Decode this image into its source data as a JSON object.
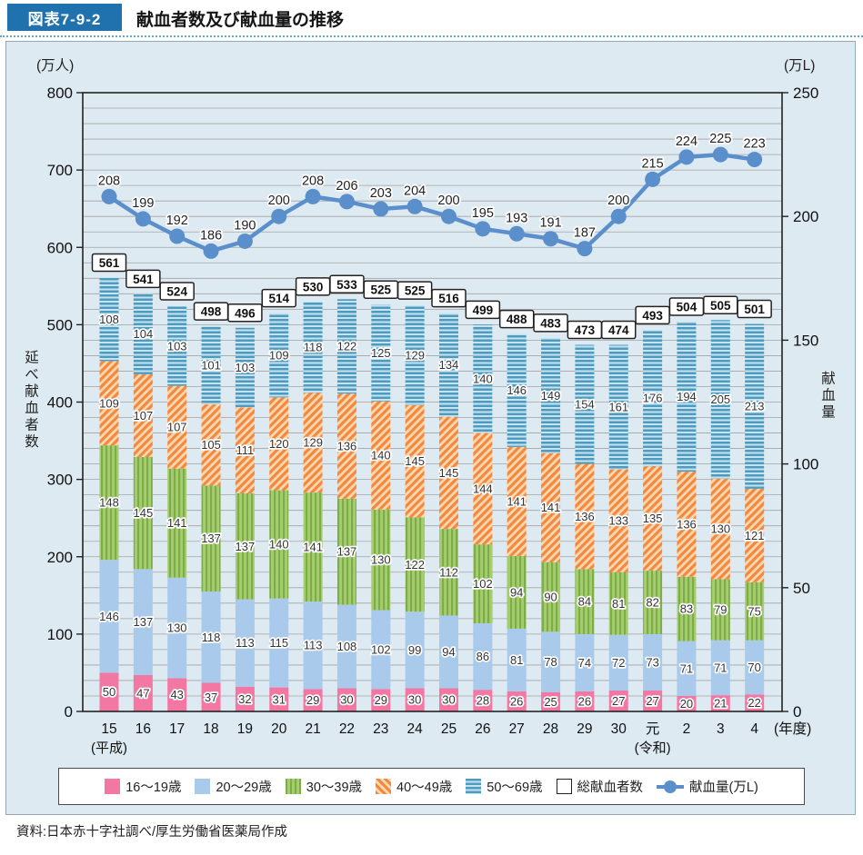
{
  "header": {
    "figure_label": "図表7-9-2",
    "title": "献血者数及び献血量の推移"
  },
  "source": "資料:日本赤十字社調べ/厚生労働省医薬局作成",
  "colors": {
    "panel_bg": "#DEEAF2",
    "header_blue": "#1F72AD",
    "line_blue": "#5B8FCB",
    "grid_gray": "#A3A3A3",
    "axis_black": "#222222"
  },
  "chart_data": {
    "type": "bar",
    "subtype": "stacked-bars-with-line",
    "left_axis": {
      "unit": "(万人)",
      "title": "延べ献血者数",
      "min": 0,
      "max": 800,
      "tick_step": 100,
      "grid_step": 20
    },
    "right_axis": {
      "unit": "(万L)",
      "title": "献血量",
      "min": 0,
      "max": 250,
      "tick_step": 50
    },
    "x_axis": {
      "categories": [
        "15",
        "16",
        "17",
        "18",
        "19",
        "20",
        "21",
        "22",
        "23",
        "24",
        "25",
        "26",
        "27",
        "28",
        "29",
        "30",
        "元",
        "2",
        "3",
        "4"
      ],
      "era_labels": [
        {
          "index": 0,
          "label": "(平成)"
        },
        {
          "index": 16,
          "label": "(令和)"
        }
      ],
      "suffix": "(年度)"
    },
    "series": [
      {
        "name": "16〜19歳",
        "style": {
          "type": "solid",
          "c1": "#F377A3"
        },
        "values": [
          50,
          47,
          43,
          37,
          32,
          31,
          29,
          30,
          29,
          30,
          30,
          28,
          26,
          25,
          26,
          27,
          27,
          20,
          21,
          22
        ]
      },
      {
        "name": "20〜29歳",
        "style": {
          "type": "solid",
          "c1": "#A9CAEB"
        },
        "values": [
          146,
          137,
          130,
          118,
          113,
          115,
          113,
          108,
          102,
          99,
          94,
          86,
          81,
          78,
          74,
          72,
          73,
          71,
          71,
          70
        ]
      },
      {
        "name": "30〜39歳",
        "style": {
          "type": "vstripe",
          "c1": "#A6CB71",
          "c2": "#7BAE45"
        },
        "values": [
          148,
          145,
          141,
          137,
          137,
          140,
          141,
          137,
          130,
          122,
          112,
          102,
          94,
          90,
          84,
          81,
          82,
          83,
          79,
          75
        ]
      },
      {
        "name": "40〜49歳",
        "style": {
          "type": "dstripe",
          "c1": "#F2893F",
          "c2": "#FBD8B2"
        },
        "values": [
          109,
          107,
          107,
          105,
          111,
          120,
          129,
          136,
          140,
          145,
          145,
          144,
          141,
          141,
          136,
          133,
          135,
          136,
          130,
          121
        ]
      },
      {
        "name": "50〜69歳",
        "style": {
          "type": "hstripe",
          "c1": "#4D9BBF",
          "c2": "#C6E3EF"
        },
        "values": [
          108,
          104,
          103,
          101,
          103,
          109,
          118,
          122,
          125,
          129,
          134,
          140,
          146,
          149,
          154,
          161,
          176,
          194,
          205,
          213
        ]
      }
    ],
    "totals": {
      "name": "総献血者数",
      "values": [
        561,
        541,
        524,
        498,
        496,
        514,
        530,
        533,
        525,
        525,
        516,
        499,
        488,
        483,
        473,
        474,
        493,
        504,
        505,
        501
      ]
    },
    "line": {
      "name": "献血量(万L)",
      "color": "#5B8FCB",
      "values": [
        208,
        199,
        192,
        186,
        190,
        200,
        208,
        206,
        203,
        204,
        200,
        195,
        193,
        191,
        187,
        200,
        215,
        224,
        225,
        223
      ]
    }
  },
  "legend": {
    "items": [
      {
        "label": "16〜19歳",
        "swatch": "series0"
      },
      {
        "label": "20〜29歳",
        "swatch": "series1"
      },
      {
        "label": "30〜39歳",
        "swatch": "series2"
      },
      {
        "label": "40〜49歳",
        "swatch": "series3"
      },
      {
        "label": "50〜69歳",
        "swatch": "series4"
      },
      {
        "label": "総献血者数",
        "swatch": "totalbox"
      },
      {
        "label": "献血量(万L)",
        "swatch": "linedot"
      }
    ]
  }
}
